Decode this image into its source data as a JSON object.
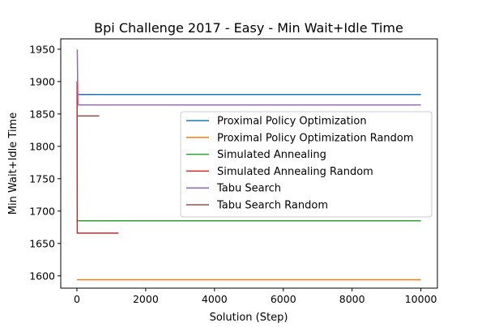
{
  "chart_data": {
    "type": "line",
    "title": "Bpi Challenge 2017 - Easy - Min Wait+Idle Time",
    "xlabel": "Solution (Step)",
    "ylabel": "Min Wait+Idle Time",
    "xlim": [
      -470,
      10480
    ],
    "ylim": [
      1581,
      1966
    ],
    "xticks": [
      0,
      2000,
      4000,
      6000,
      8000,
      10000
    ],
    "xtick_labels": [
      "0",
      "2000",
      "4000",
      "6000",
      "8000",
      "10000"
    ],
    "yticks": [
      1600,
      1650,
      1700,
      1750,
      1800,
      1850,
      1900,
      1950
    ],
    "ytick_labels": [
      "1600",
      "1650",
      "1700",
      "1750",
      "1800",
      "1850",
      "1900",
      "1950"
    ],
    "grid": false,
    "legend_position": "center-right",
    "series": [
      {
        "name": "Proximal Policy Optimization",
        "color": "#1f77b4",
        "x": [
          0,
          10000
        ],
        "y": [
          1880,
          1880
        ]
      },
      {
        "name": "Proximal Policy Optimization Random",
        "color": "#ff7f0e",
        "x": [
          0,
          10000
        ],
        "y": [
          1594,
          1594
        ]
      },
      {
        "name": "Simulated Annealing",
        "color": "#2ca02c",
        "x": [
          0,
          10000
        ],
        "y": [
          1685,
          1685
        ]
      },
      {
        "name": "Simulated Annealing Random",
        "color": "#d62728",
        "x": [
          0,
          5,
          10,
          1210
        ],
        "y": [
          1900,
          1900,
          1666,
          1666
        ]
      },
      {
        "name": "Tabu Search",
        "color": "#9467bd",
        "x": [
          0,
          10,
          30,
          10000
        ],
        "y": [
          1949,
          1949,
          1864,
          1864
        ]
      },
      {
        "name": "Tabu Search Random",
        "color": "#8c564b",
        "x": [
          0,
          650
        ],
        "y": [
          1847,
          1847
        ]
      }
    ]
  }
}
